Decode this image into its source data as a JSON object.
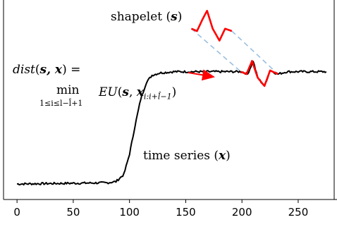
{
  "shapelet_label": {
    "text": "shapelet (",
    "sym": "s",
    "close": ")"
  },
  "series_label": {
    "text": "time series (",
    "sym": "x",
    "close": ")"
  },
  "formula": {
    "lhs_fn": "dist",
    "lhs_args": "s, x",
    "lhs_eq": ") =",
    "min_word": "min",
    "min_sub": "1≤i≤l−l̂+1",
    "rhs_fn": "EU",
    "rhs_s": "s",
    "rhs_x": "x",
    "rhs_sub": "i:i+l̂−1",
    "rhs_close": ")"
  },
  "colors": {
    "series": "#000000",
    "shapelet": "#ff0000",
    "guide": "#9bbfe0",
    "arrow": "#ff0000"
  },
  "chart_data": {
    "type": "line",
    "title": "",
    "xlabel": "",
    "ylabel": "",
    "xlim": [
      -12,
      282
    ],
    "ylim": [
      -0.12,
      1.55
    ],
    "x_ticks": [
      0,
      50,
      100,
      150,
      200,
      250
    ],
    "x_tick_labels": [
      "0",
      "50",
      "100",
      "150",
      "200",
      "250"
    ],
    "series": [
      {
        "points": [
          [
            0,
            0.01
          ],
          [
            40,
            0.015
          ],
          [
            80,
            0.02
          ],
          [
            88,
            0.03
          ],
          [
            95,
            0.09
          ],
          [
            100,
            0.26
          ],
          [
            105,
            0.5
          ],
          [
            110,
            0.72
          ],
          [
            115,
            0.86
          ],
          [
            120,
            0.92
          ],
          [
            127,
            0.94
          ],
          [
            140,
            0.95
          ],
          [
            160,
            0.95
          ],
          [
            190,
            0.95
          ],
          [
            200,
            0.95
          ],
          [
            205,
            0.93
          ],
          [
            210,
            1.04
          ],
          [
            214,
            0.9
          ],
          [
            220,
            0.83
          ],
          [
            225,
            0.96
          ],
          [
            232,
            0.93
          ],
          [
            240,
            0.95
          ],
          [
            260,
            0.95
          ],
          [
            275,
            0.95
          ]
        ]
      },
      {
        "points": [
          [
            155,
            1.31
          ],
          [
            160,
            1.29
          ],
          [
            165,
            1.39
          ],
          [
            169,
            1.46
          ],
          [
            174,
            1.31
          ],
          [
            180,
            1.21
          ],
          [
            185,
            1.31
          ],
          [
            191,
            1.29
          ]
        ]
      },
      {
        "points": [
          [
            199,
            0.95
          ],
          [
            204,
            0.93
          ],
          [
            209,
            1.04
          ],
          [
            214,
            0.9
          ],
          [
            220,
            0.83
          ],
          [
            225,
            0.96
          ],
          [
            232,
            0.93
          ]
        ]
      }
    ]
  }
}
